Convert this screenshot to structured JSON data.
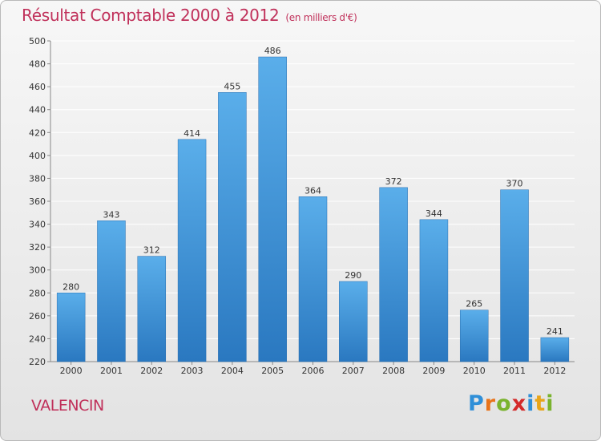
{
  "header": {
    "title": "Résultat Comptable 2000 à 2012",
    "subtitle": "(en milliers d'€)"
  },
  "footer": {
    "place": "VALENCIN",
    "logo_letters": [
      {
        "ch": "P",
        "color": "#2f8fd8"
      },
      {
        "ch": "r",
        "color": "#e8731a"
      },
      {
        "ch": "o",
        "color": "#7ab32e"
      },
      {
        "ch": "x",
        "color": "#d42a2a"
      },
      {
        "ch": "i",
        "color": "#2f8fd8"
      },
      {
        "ch": "t",
        "color": "#e8a51a"
      },
      {
        "ch": "i",
        "color": "#7ab32e"
      }
    ]
  },
  "chart_data": {
    "type": "bar",
    "title": "Résultat Comptable 2000 à 2012",
    "subtitle": "(en milliers d'€)",
    "xlabel": "",
    "ylabel": "",
    "categories": [
      "2000",
      "2001",
      "2002",
      "2003",
      "2004",
      "2005",
      "2006",
      "2007",
      "2008",
      "2009",
      "2010",
      "2011",
      "2012"
    ],
    "values": [
      280,
      343,
      312,
      414,
      455,
      486,
      364,
      290,
      372,
      344,
      265,
      370,
      241
    ],
    "ylim": [
      220,
      500
    ],
    "ytick_step": 20,
    "grid": true,
    "bar_color_top": "#5aaeea",
    "bar_color_bottom": "#2a78c0",
    "grid_color": "#ffffff"
  }
}
